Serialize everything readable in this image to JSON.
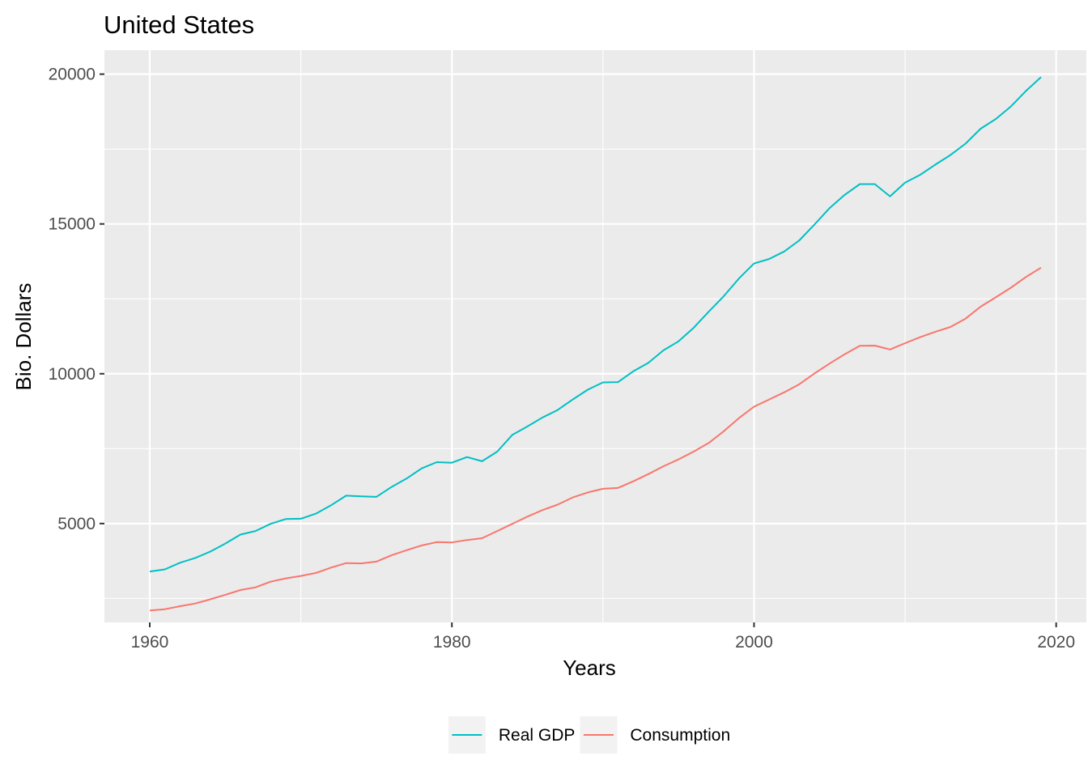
{
  "chart_data": {
    "type": "line",
    "title": "United States",
    "xlabel": "Years",
    "ylabel": "Bio. Dollars",
    "xlim": [
      1957,
      2022
    ],
    "ylim": [
      1700,
      20800
    ],
    "x_ticks": [
      1960,
      1980,
      2000,
      2020
    ],
    "y_ticks": [
      5000,
      10000,
      15000,
      20000
    ],
    "x_tick_labels": [
      "1960",
      "1980",
      "2000",
      "2020"
    ],
    "y_tick_labels": [
      "5000",
      "10000",
      "15000",
      "20000"
    ],
    "grid": true,
    "legend_position": "bottom",
    "x": [
      1960,
      1961,
      1962,
      1963,
      1964,
      1965,
      1966,
      1967,
      1968,
      1969,
      1970,
      1971,
      1972,
      1973,
      1974,
      1975,
      1976,
      1977,
      1978,
      1979,
      1980,
      1981,
      1982,
      1983,
      1984,
      1985,
      1986,
      1987,
      1988,
      1989,
      1990,
      1991,
      1992,
      1993,
      1994,
      1995,
      1996,
      1997,
      1998,
      1999,
      2000,
      2001,
      2002,
      2003,
      2004,
      2005,
      2006,
      2007,
      2008,
      2009,
      2010,
      2011,
      2012,
      2013,
      2014,
      2015,
      2016,
      2017,
      2018,
      2019
    ],
    "series": [
      {
        "name": "Real GDP",
        "color": "#00BFC4",
        "values": [
          3400,
          3470,
          3690,
          3850,
          4060,
          4330,
          4630,
          4750,
          4990,
          5150,
          5160,
          5330,
          5610,
          5930,
          5910,
          5890,
          6220,
          6500,
          6840,
          7050,
          7030,
          7220,
          7080,
          7400,
          7960,
          8240,
          8540,
          8790,
          9140,
          9470,
          9710,
          9720,
          10080,
          10360,
          10780,
          11080,
          11530,
          12070,
          12590,
          13180,
          13680,
          13830,
          14080,
          14450,
          14980,
          15530,
          15970,
          16330,
          16330,
          15920,
          16380,
          16640,
          16980,
          17300,
          17680,
          18180,
          18500,
          18920,
          19440,
          19900
        ]
      },
      {
        "name": "Consumption",
        "color": "#F8766D",
        "values": [
          2100,
          2140,
          2240,
          2330,
          2470,
          2620,
          2780,
          2870,
          3060,
          3170,
          3250,
          3350,
          3530,
          3680,
          3670,
          3730,
          3940,
          4110,
          4270,
          4380,
          4370,
          4450,
          4510,
          4750,
          4990,
          5230,
          5450,
          5630,
          5870,
          6040,
          6160,
          6190,
          6410,
          6650,
          6910,
          7140,
          7400,
          7690,
          8080,
          8520,
          8900,
          9140,
          9380,
          9650,
          10010,
          10340,
          10650,
          10930,
          10940,
          10810,
          11020,
          11220,
          11400,
          11560,
          11840,
          12240,
          12550,
          12870,
          13230,
          13540
        ]
      }
    ]
  }
}
